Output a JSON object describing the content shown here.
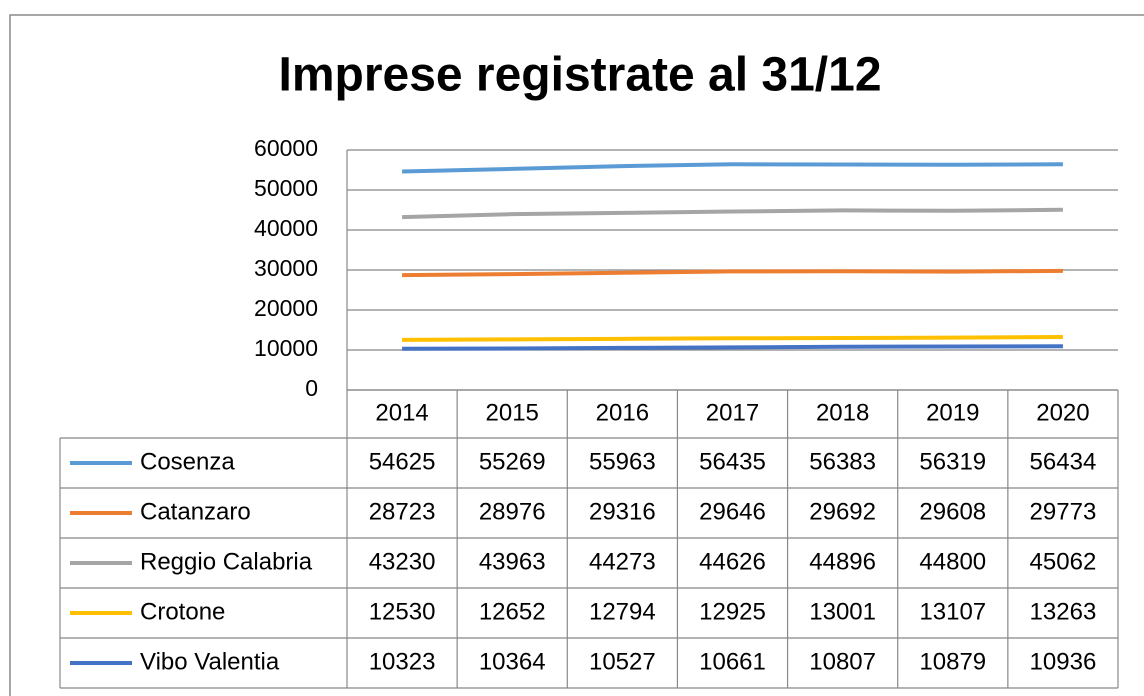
{
  "chart_data": {
    "type": "line",
    "title": "Imprese registrate al 31/12",
    "categories": [
      "2014",
      "2015",
      "2016",
      "2017",
      "2018",
      "2019",
      "2020"
    ],
    "series": [
      {
        "name": "Cosenza",
        "color": "#5b9bd5",
        "values": [
          54625,
          55269,
          55963,
          56435,
          56383,
          56319,
          56434
        ]
      },
      {
        "name": "Catanzaro",
        "color": "#ed7d31",
        "values": [
          28723,
          28976,
          29316,
          29646,
          29692,
          29608,
          29773
        ]
      },
      {
        "name": "Reggio Calabria",
        "color": "#a5a5a5",
        "values": [
          43230,
          43963,
          44273,
          44626,
          44896,
          44800,
          45062
        ]
      },
      {
        "name": "Crotone",
        "color": "#ffc000",
        "values": [
          12530,
          12652,
          12794,
          12925,
          13001,
          13107,
          13263
        ]
      },
      {
        "name": "Vibo Valentia",
        "color": "#4472c4",
        "values": [
          10323,
          10364,
          10527,
          10661,
          10807,
          10879,
          10936
        ]
      }
    ],
    "ylim": [
      0,
      60000
    ],
    "yticks": [
      0,
      10000,
      20000,
      30000,
      40000,
      50000,
      60000
    ],
    "grid": true
  }
}
